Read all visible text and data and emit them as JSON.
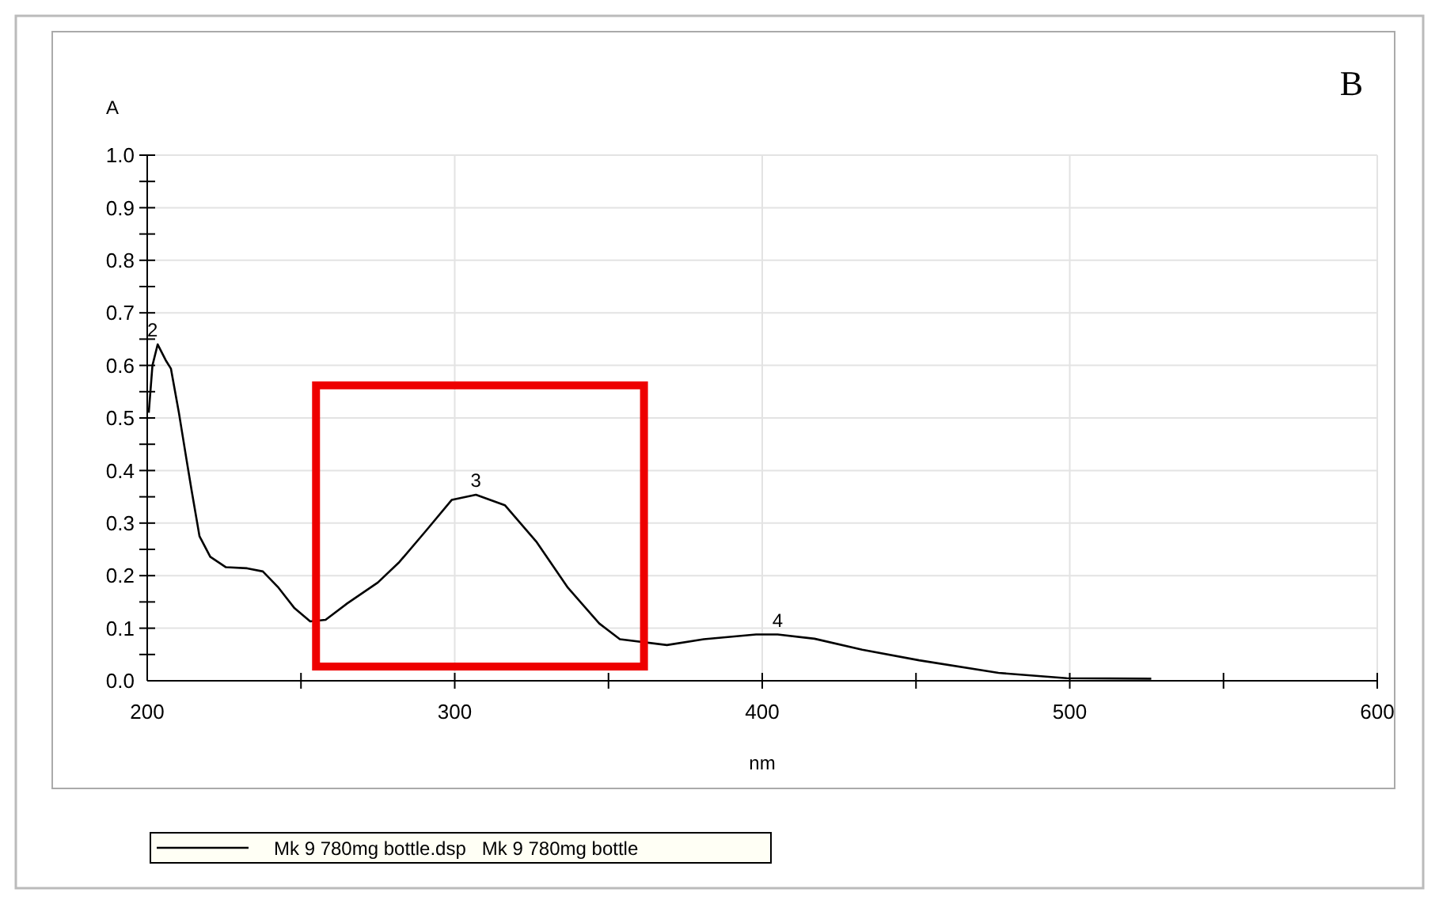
{
  "chart_data": {
    "type": "line",
    "xlabel": "nm",
    "ylabel": "A",
    "xlim": [
      200,
      600
    ],
    "ylim": [
      0,
      1
    ],
    "xticks": [
      200,
      {
        "value": 250,
        "label": null
      },
      300,
      {
        "value": 350,
        "label": null
      },
      400,
      {
        "value": 450,
        "label": null
      },
      500,
      {
        "value": 550,
        "label": null
      },
      600
    ],
    "yticks": [
      {
        "value": 0,
        "label": "0.0"
      },
      {
        "value": 0.05,
        "label": null
      },
      0.1,
      {
        "value": 0.15,
        "label": null
      },
      0.2,
      {
        "value": 0.25,
        "label": null
      },
      0.3,
      {
        "value": 0.35,
        "label": null
      },
      0.4,
      {
        "value": 0.45,
        "label": null
      },
      0.5,
      {
        "value": 0.55,
        "label": null
      },
      0.6,
      {
        "value": 0.65,
        "label": null
      },
      0.7,
      {
        "value": 0.75,
        "label": null
      },
      0.8,
      {
        "value": 0.85,
        "label": null
      },
      0.9,
      {
        "value": 0.95,
        "label": null
      },
      {
        "value": 1,
        "label": "1.0"
      }
    ],
    "grid": true,
    "legend": "bottom",
    "marker": "none",
    "line_style": "solid",
    "series": [
      {
        "name": "Mk 9 780mg bottle.dsp   Mk 9 780mg bottle",
        "color": "#000000",
        "x": [
          200.5,
          201.7,
          203.4,
          206,
          207.7,
          210.3,
          212.8,
          214.5,
          217,
          220.5,
          225.6,
          232.5,
          237.6,
          242.7,
          247.9,
          253,
          258,
          265,
          275,
          282,
          290.6,
          299,
          306.9,
          316.3,
          326.5,
          336.8,
          347,
          353.7,
          369,
          381,
          398,
          405,
          417,
          432.5,
          451,
          476.8,
          499,
          526.5
        ],
        "values": [
          0.51,
          0.6,
          0.64,
          0.61,
          0.594,
          0.51,
          0.42,
          0.36,
          0.275,
          0.236,
          0.216,
          0.214,
          0.208,
          0.177,
          0.138,
          0.113,
          0.116,
          0.147,
          0.187,
          0.226,
          0.285,
          0.344,
          0.354,
          0.334,
          0.265,
          0.177,
          0.109,
          0.079,
          0.068,
          0.079,
          0.088,
          0.088,
          0.08,
          0.059,
          0.039,
          0.015,
          0.005,
          0.004
        ]
      }
    ],
    "annotations": [
      {
        "text": "2",
        "x": 201.7,
        "y": 0.64
      },
      {
        "text": "3",
        "x": 306.9,
        "y": 0.354
      },
      {
        "text": "4",
        "x": 405,
        "y": 0.088
      },
      "B"
    ]
  }
}
